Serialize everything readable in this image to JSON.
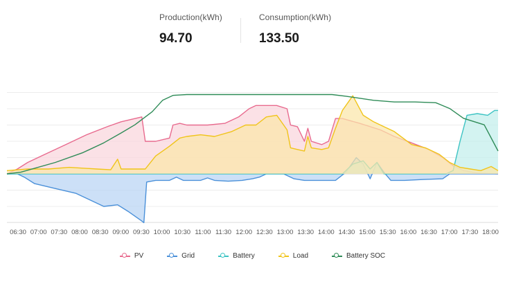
{
  "summary": {
    "production": {
      "label": "Production(kWh)",
      "value": "94.70"
    },
    "consumption": {
      "label": "Consumption(kWh)",
      "value": "133.50"
    }
  },
  "chart_data": {
    "type": "area",
    "title": "",
    "xlabel": "",
    "ylabel": "",
    "grid": "horizontal",
    "legend_position": "bottom",
    "x_ticks": [
      "06:30",
      "07:00",
      "07:30",
      "08:00",
      "08:30",
      "09:00",
      "09:30",
      "10:00",
      "10:30",
      "11:00",
      "11:30",
      "12:00",
      "12:30",
      "13:00",
      "13:30",
      "14:00",
      "14:30",
      "15:00",
      "15:30",
      "16:00",
      "16:30",
      "17:00",
      "17:30",
      "18:00"
    ],
    "x_range": [
      "06:20",
      "18:10"
    ],
    "y_range": [
      -3,
      6
    ],
    "series": [
      {
        "name": "PV",
        "color": "#e86a8e",
        "fill": "#f9d5dd",
        "axis": "power",
        "fill_area": true,
        "points": [
          [
            "06:20",
            0.0
          ],
          [
            "06:35",
            0.3
          ],
          [
            "06:50",
            0.7
          ],
          [
            "07:15",
            1.2
          ],
          [
            "07:45",
            1.8
          ],
          [
            "08:15",
            2.4
          ],
          [
            "08:45",
            2.9
          ],
          [
            "09:05",
            3.2
          ],
          [
            "09:35",
            3.5
          ],
          [
            "09:40",
            2.0
          ],
          [
            "09:55",
            2.0
          ],
          [
            "10:15",
            2.2
          ],
          [
            "10:20",
            3.0
          ],
          [
            "10:30",
            3.1
          ],
          [
            "10:40",
            3.0
          ],
          [
            "10:55",
            3.0
          ],
          [
            "11:10",
            3.0
          ],
          [
            "11:35",
            3.1
          ],
          [
            "11:55",
            3.5
          ],
          [
            "12:10",
            4.0
          ],
          [
            "12:20",
            4.2
          ],
          [
            "12:50",
            4.2
          ],
          [
            "13:05",
            4.0
          ],
          [
            "13:10",
            3.0
          ],
          [
            "13:20",
            2.9
          ],
          [
            "13:30",
            2.0
          ],
          [
            "13:35",
            2.8
          ],
          [
            "13:40",
            2.0
          ],
          [
            "13:55",
            1.8
          ],
          [
            "14:05",
            2.0
          ],
          [
            "14:15",
            3.4
          ],
          [
            "14:25",
            3.4
          ],
          [
            "14:50",
            3.1
          ],
          [
            "15:20",
            2.7
          ],
          [
            "15:40",
            2.3
          ],
          [
            "16:05",
            1.9
          ],
          [
            "16:30",
            1.5
          ],
          [
            "16:50",
            1.0
          ],
          [
            "17:05",
            0.5
          ],
          [
            "17:20",
            0.2
          ],
          [
            "17:40",
            0.05
          ],
          [
            "18:10",
            0.0
          ]
        ]
      },
      {
        "name": "Grid",
        "color": "#4a90d9",
        "fill": "#b9d4f4",
        "axis": "power",
        "fill_area": true,
        "points": [
          [
            "06:20",
            0.0
          ],
          [
            "06:35",
            0.0
          ],
          [
            "06:45",
            -0.2
          ],
          [
            "07:00",
            -0.6
          ],
          [
            "07:30",
            -0.9
          ],
          [
            "08:00",
            -1.2
          ],
          [
            "08:20",
            -1.6
          ],
          [
            "08:40",
            -2.0
          ],
          [
            "09:00",
            -1.9
          ],
          [
            "09:15",
            -2.3
          ],
          [
            "09:35",
            -2.9
          ],
          [
            "09:38",
            -3.0
          ],
          [
            "09:42",
            -0.5
          ],
          [
            "09:55",
            -0.4
          ],
          [
            "10:15",
            -0.4
          ],
          [
            "10:25",
            -0.2
          ],
          [
            "10:35",
            -0.4
          ],
          [
            "11:00",
            -0.4
          ],
          [
            "11:10",
            -0.25
          ],
          [
            "11:20",
            -0.4
          ],
          [
            "11:40",
            -0.45
          ],
          [
            "12:00",
            -0.4
          ],
          [
            "12:15",
            -0.3
          ],
          [
            "12:25",
            -0.2
          ],
          [
            "12:35",
            0.0
          ],
          [
            "13:00",
            0.0
          ],
          [
            "13:15",
            -0.3
          ],
          [
            "13:30",
            -0.4
          ],
          [
            "13:55",
            -0.4
          ],
          [
            "14:15",
            -0.4
          ],
          [
            "14:30",
            0.1
          ],
          [
            "14:45",
            1.0
          ],
          [
            "14:55",
            0.6
          ],
          [
            "15:05",
            -0.3
          ],
          [
            "15:15",
            0.7
          ],
          [
            "15:25",
            0.1
          ],
          [
            "15:35",
            -0.4
          ],
          [
            "15:55",
            -0.4
          ],
          [
            "16:20",
            -0.35
          ],
          [
            "16:50",
            -0.3
          ],
          [
            "17:00",
            0.0
          ],
          [
            "17:30",
            0.0
          ],
          [
            "18:10",
            0.0
          ]
        ]
      },
      {
        "name": "Battery",
        "color": "#3cc3c3",
        "fill": "#c2eeeb",
        "axis": "power",
        "fill_area": true,
        "points": [
          [
            "06:20",
            0.0
          ],
          [
            "14:25",
            0.0
          ],
          [
            "14:40",
            0.6
          ],
          [
            "14:55",
            0.8
          ],
          [
            "15:05",
            0.3
          ],
          [
            "15:15",
            0.7
          ],
          [
            "15:25",
            0.0
          ],
          [
            "16:55",
            0.0
          ],
          [
            "17:05",
            0.2
          ],
          [
            "17:15",
            2.0
          ],
          [
            "17:25",
            3.6
          ],
          [
            "17:40",
            3.7
          ],
          [
            "17:55",
            3.6
          ],
          [
            "18:05",
            3.9
          ],
          [
            "18:10",
            3.9
          ]
        ]
      },
      {
        "name": "Load",
        "color": "#f0c419",
        "fill": "#fbe6a9",
        "axis": "power",
        "fill_area": true,
        "points": [
          [
            "06:20",
            0.2
          ],
          [
            "06:50",
            0.3
          ],
          [
            "07:20",
            0.3
          ],
          [
            "07:50",
            0.4
          ],
          [
            "08:30",
            0.3
          ],
          [
            "08:50",
            0.25
          ],
          [
            "09:00",
            0.9
          ],
          [
            "09:05",
            0.3
          ],
          [
            "09:40",
            0.3
          ],
          [
            "09:55",
            1.1
          ],
          [
            "10:15",
            1.7
          ],
          [
            "10:30",
            2.2
          ],
          [
            "10:40",
            2.3
          ],
          [
            "11:00",
            2.4
          ],
          [
            "11:20",
            2.3
          ],
          [
            "11:45",
            2.6
          ],
          [
            "12:05",
            3.0
          ],
          [
            "12:20",
            3.0
          ],
          [
            "12:35",
            3.5
          ],
          [
            "12:50",
            3.6
          ],
          [
            "13:05",
            2.7
          ],
          [
            "13:10",
            1.6
          ],
          [
            "13:20",
            1.5
          ],
          [
            "13:30",
            1.4
          ],
          [
            "13:35",
            2.3
          ],
          [
            "13:40",
            1.6
          ],
          [
            "13:55",
            1.5
          ],
          [
            "14:05",
            1.6
          ],
          [
            "14:15",
            2.8
          ],
          [
            "14:25",
            3.9
          ],
          [
            "14:40",
            4.8
          ],
          [
            "14:55",
            3.6
          ],
          [
            "15:10",
            3.2
          ],
          [
            "15:25",
            2.9
          ],
          [
            "15:40",
            2.6
          ],
          [
            "16:05",
            1.8
          ],
          [
            "16:25",
            1.6
          ],
          [
            "16:45",
            1.2
          ],
          [
            "17:00",
            0.7
          ],
          [
            "17:15",
            0.4
          ],
          [
            "17:30",
            0.3
          ],
          [
            "17:45",
            0.2
          ],
          [
            "18:00",
            0.45
          ],
          [
            "18:10",
            0.2
          ]
        ]
      },
      {
        "name": "Battery SOC",
        "color": "#2e8b57",
        "fill": "none",
        "axis": "soc",
        "fill_area": false,
        "points": [
          [
            "06:20",
            0
          ],
          [
            "06:40",
            2
          ],
          [
            "07:30",
            14
          ],
          [
            "08:10",
            26
          ],
          [
            "08:40",
            38
          ],
          [
            "09:05",
            50
          ],
          [
            "09:25",
            60
          ],
          [
            "09:50",
            76
          ],
          [
            "10:05",
            90
          ],
          [
            "10:20",
            96
          ],
          [
            "10:40",
            97
          ],
          [
            "13:00",
            97
          ],
          [
            "14:10",
            97
          ],
          [
            "14:30",
            95
          ],
          [
            "15:10",
            90
          ],
          [
            "15:40",
            88
          ],
          [
            "16:10",
            88
          ],
          [
            "16:40",
            87
          ],
          [
            "17:00",
            80
          ],
          [
            "17:20",
            68
          ],
          [
            "17:50",
            60
          ],
          [
            "18:10",
            28
          ]
        ]
      }
    ]
  }
}
